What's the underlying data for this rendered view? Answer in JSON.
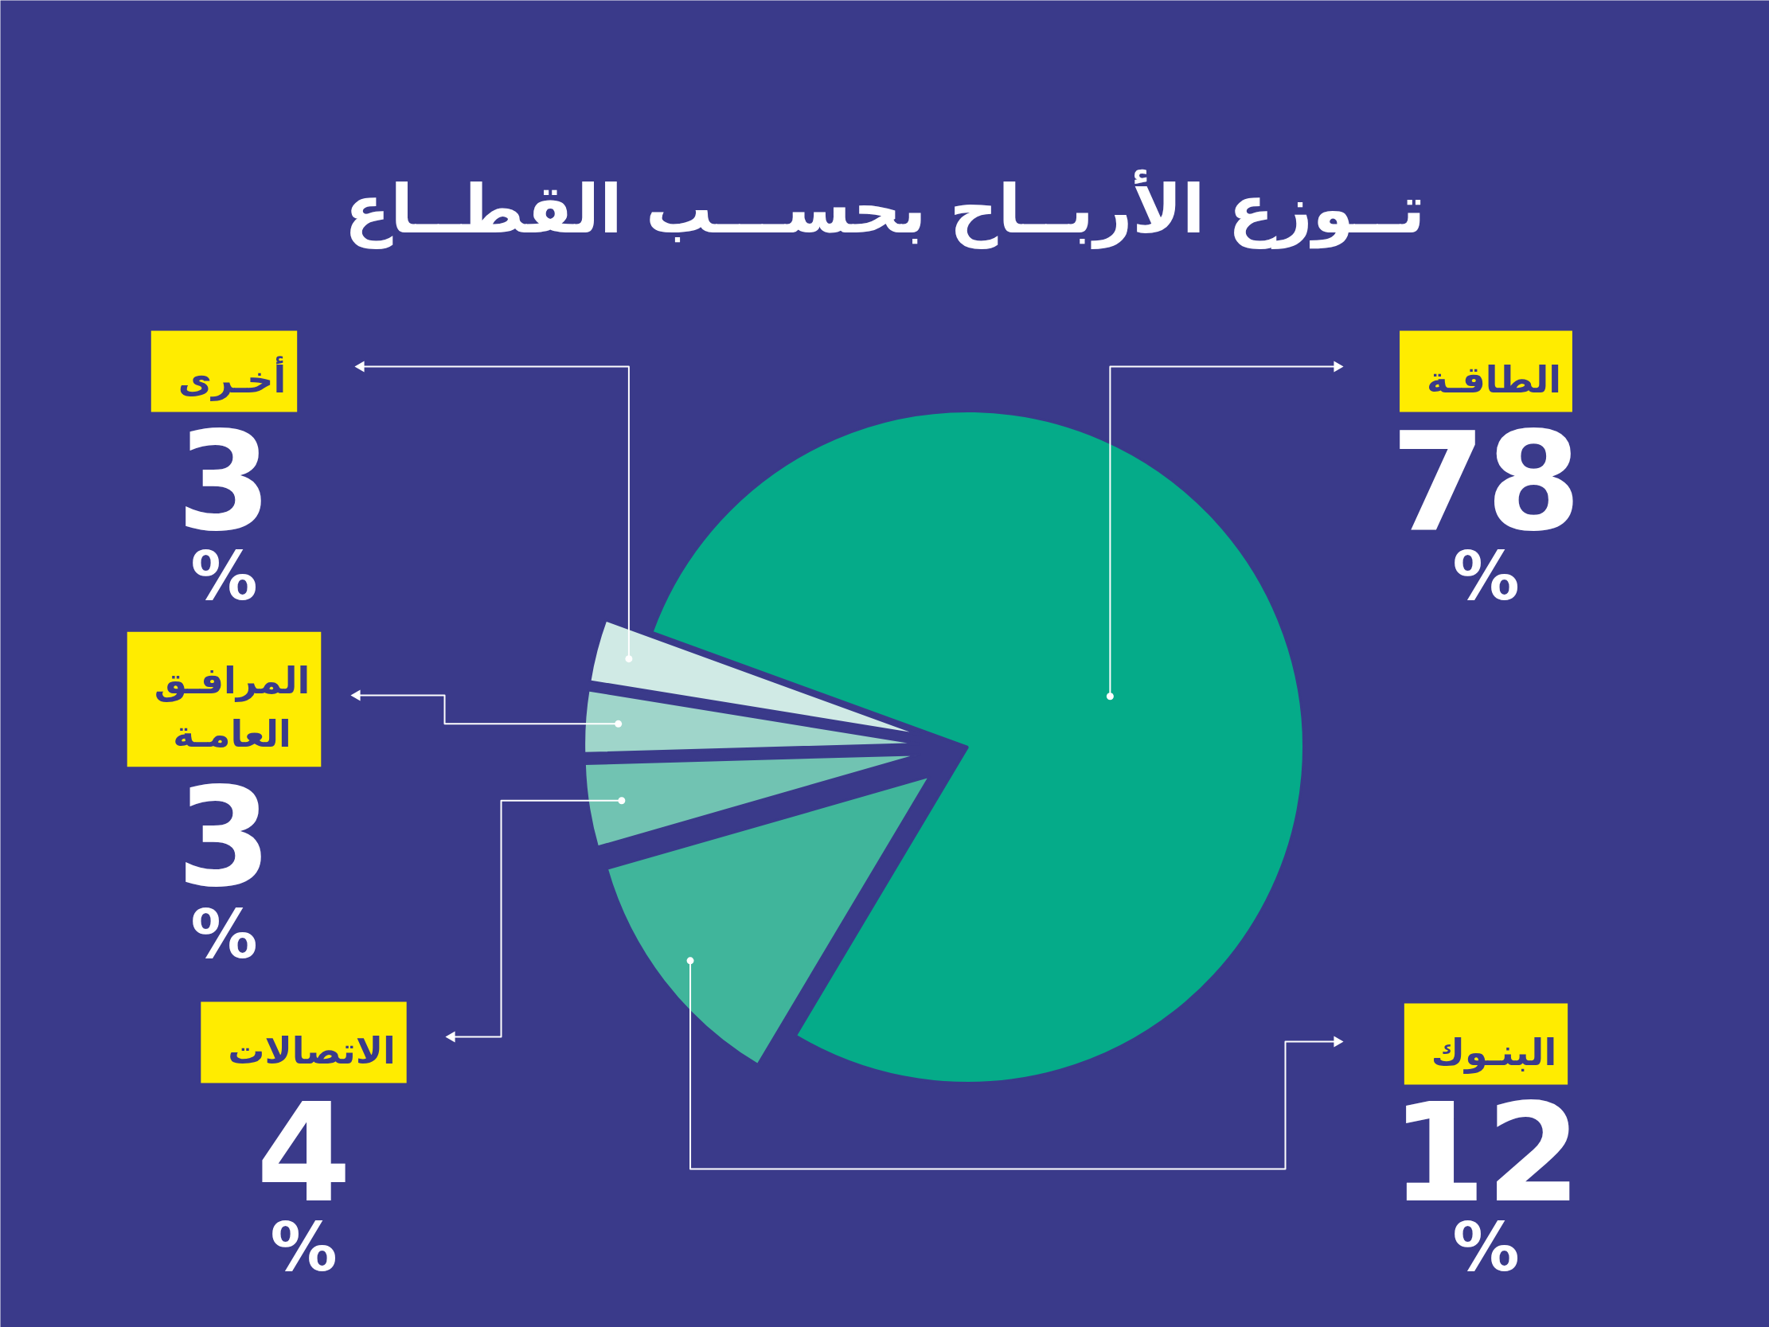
{
  "chart_data": {
    "type": "pie",
    "title": "تــوزع الأربــاح بحســـب القطــاع",
    "categories": [
      "الطاقـة",
      "البنـوك",
      "الاتصالات",
      "المرافـق العامـة",
      "أخـرى"
    ],
    "values": [
      78,
      12,
      4,
      3,
      3
    ],
    "colors": [
      "#05ab89",
      "#40b59b",
      "#71c3b2",
      "#9fd5ca",
      "#d0eae5"
    ],
    "value_labels": [
      "78%",
      "12%",
      "4%",
      "3%",
      "3%"
    ]
  }
}
